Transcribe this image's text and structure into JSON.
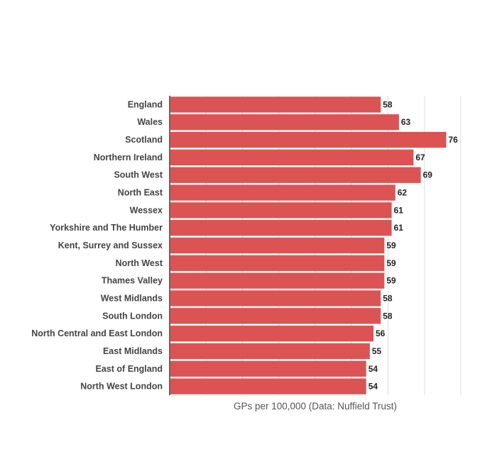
{
  "chart_data": {
    "type": "bar",
    "orientation": "horizontal",
    "title": "",
    "xlabel": "GPs per 100,000 (Data: Nuffield Trust)",
    "ylabel": "",
    "xlim": [
      0,
      80
    ],
    "grid": true,
    "legend": "none",
    "bar_color": "#dc5354",
    "categories": [
      "England",
      "Wales",
      "Scotland",
      "Northern Ireland",
      "South West",
      "North East",
      "Wessex",
      "Yorkshire and The Humber",
      "Kent, Surrey and Sussex",
      "North West",
      "Thames Valley",
      "West Midlands",
      "South London",
      "North Central and East London",
      "East Midlands",
      "East of England",
      "North West London"
    ],
    "values": [
      58,
      63,
      76,
      67,
      69,
      62,
      61,
      61,
      59,
      59,
      59,
      58,
      58,
      56,
      55,
      54,
      54
    ]
  }
}
